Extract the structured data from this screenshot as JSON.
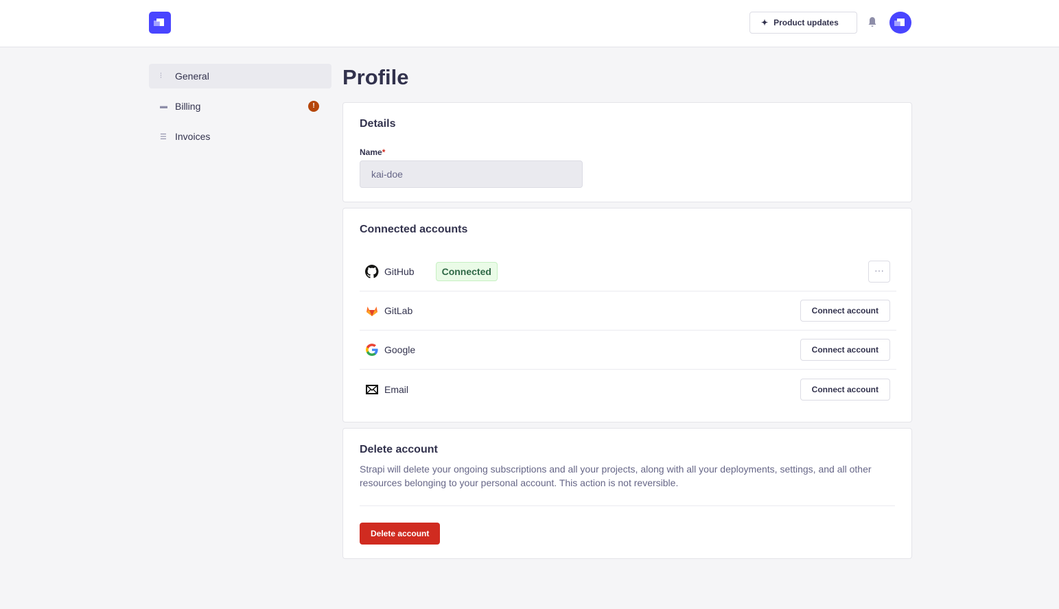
{
  "header": {
    "product_updates": "Product updates"
  },
  "sidebar": {
    "items": [
      {
        "label": "General",
        "icon": "sliders-icon"
      },
      {
        "label": "Billing",
        "icon": "credit-card-icon",
        "alert": "!"
      },
      {
        "label": "Invoices",
        "icon": "invoice-icon"
      }
    ]
  },
  "page": {
    "title": "Profile"
  },
  "details": {
    "title": "Details",
    "name_label": "Name",
    "required": "*",
    "name_value": "kai-doe"
  },
  "connected": {
    "title": "Connected accounts",
    "accounts": [
      {
        "name": "GitHub",
        "status": "Connected",
        "more": "···"
      },
      {
        "name": "GitLab",
        "action": "Connect account"
      },
      {
        "name": "Google",
        "action": "Connect account"
      },
      {
        "name": "Email",
        "action": "Connect account"
      }
    ]
  },
  "delete": {
    "title": "Delete account",
    "description": "Strapi will delete your ongoing subscriptions and all your projects, along with all your deployments, settings, and all other resources belonging to your personal account. This action is not reversible.",
    "button": "Delete account"
  },
  "colors": {
    "primary": "#4945ff",
    "danger": "#d02b20",
    "success": "#2f6846"
  }
}
